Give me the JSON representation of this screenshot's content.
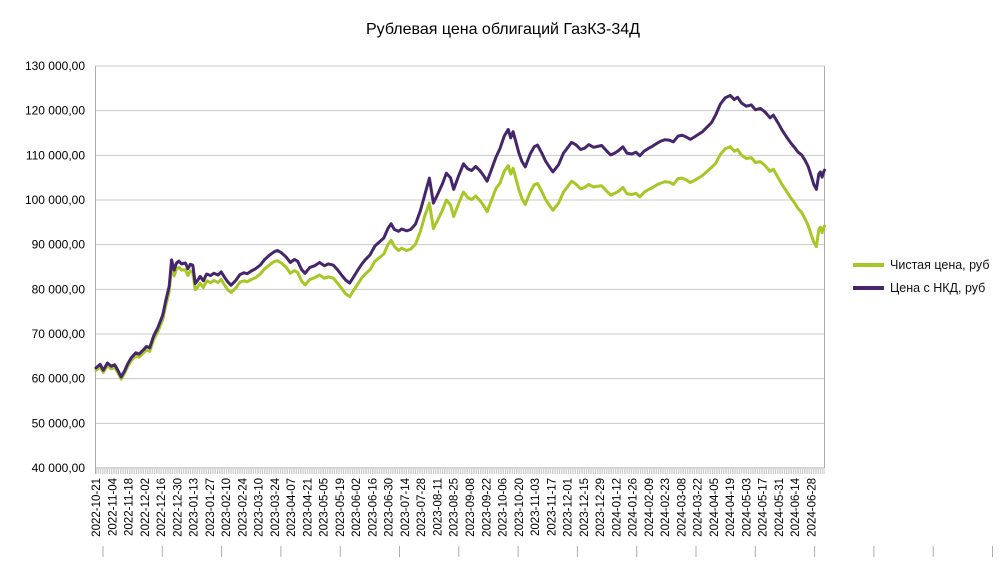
{
  "title": "Рублевая цена облигаций ГазКЗ-34Д",
  "legend": {
    "items": [
      {
        "label": "Чистая цена, руб",
        "series": "clean"
      },
      {
        "label": "Цена с НКД, руб",
        "series": "dirty"
      }
    ]
  },
  "colors": {
    "clean": "#A6C725",
    "dirty": "#45266B",
    "grid": "#C9C9C9",
    "axis": "#ADADAD",
    "minor_tick": "#BDBDBD",
    "text": "#000000",
    "background": "#FFFFFF"
  },
  "chart_data": {
    "type": "line",
    "title": "Рублевая цена облигаций ГазКЗ-34Д",
    "xlabel": "",
    "ylabel": "",
    "ylim": [
      40000,
      130000
    ],
    "y_tick_step": 10000,
    "grid": true,
    "legend_position": "right",
    "y_tick_labels": [
      "130 000,00",
      "120 000,00",
      "110 000,00",
      "100 000,00",
      "90 000,00",
      "80 000,00",
      "70 000,00",
      "60 000,00",
      "50 000,00",
      "40 000,00"
    ],
    "x_tick_labels": [
      "2022-10-21",
      "2022-11-04",
      "2022-11-18",
      "2022-12-02",
      "2022-12-16",
      "2022-12-30",
      "2023-01-13",
      "2023-01-27",
      "2023-02-10",
      "2023-02-24",
      "2023-03-10",
      "2023-03-24",
      "2023-04-07",
      "2023-04-21",
      "2023-05-05",
      "2023-05-19",
      "2023-06-02",
      "2023-06-16",
      "2023-06-30",
      "2023-07-14",
      "2023-07-28",
      "2023-08-11",
      "2023-08-25",
      "2023-09-08",
      "2023-09-22",
      "2023-10-06",
      "2023-10-20",
      "2023-11-03",
      "2023-11-17",
      "2023-12-01",
      "2023-12-15",
      "2023-12-29",
      "2024-01-12",
      "2024-01-26",
      "2024-02-09",
      "2024-02-23",
      "2024-03-08",
      "2024-03-22",
      "2024-04-05",
      "2024-04-19",
      "2024-05-03",
      "2024-05-17",
      "2024-05-31",
      "2024-06-14",
      "2024-06-28"
    ],
    "x_unit": "tick_index (0 = 2022-10-21, 1 tick = 14 days, data extends to ~44.8)",
    "points_format": [
      "tick_index",
      "Цена с НКД, руб",
      "Чистая цена, руб"
    ],
    "series": [
      {
        "name": "Чистая цена, руб",
        "key": "clean",
        "color": "#A6C725",
        "point_index": 2
      },
      {
        "name": "Цена с НКД, руб",
        "key": "dirty",
        "color": "#45266B",
        "point_index": 1
      }
    ],
    "points": [
      [
        0,
        62400,
        61900
      ],
      [
        0.25,
        63200,
        62600
      ],
      [
        0.45,
        61900,
        61400
      ],
      [
        0.7,
        63500,
        62900
      ],
      [
        0.95,
        62800,
        62200
      ],
      [
        1.15,
        63100,
        62500
      ],
      [
        1.35,
        61800,
        61300
      ],
      [
        1.55,
        60400,
        59900
      ],
      [
        1.75,
        61700,
        61200
      ],
      [
        1.95,
        63300,
        62700
      ],
      [
        2.15,
        64600,
        64000
      ],
      [
        2.45,
        65800,
        65100
      ],
      [
        2.65,
        65500,
        64800
      ],
      [
        2.9,
        66400,
        65700
      ],
      [
        3.1,
        67200,
        66400
      ],
      [
        3.3,
        66900,
        66100
      ],
      [
        3.55,
        69600,
        68800
      ],
      [
        3.8,
        71400,
        70500
      ],
      [
        4.1,
        74200,
        73200
      ],
      [
        4.3,
        77600,
        76500
      ],
      [
        4.5,
        80700,
        79500
      ],
      [
        4.65,
        86600,
        85300
      ],
      [
        4.8,
        84300,
        83000
      ],
      [
        4.95,
        85900,
        84600
      ],
      [
        5.1,
        86300,
        84900
      ],
      [
        5.25,
        85700,
        84300
      ],
      [
        5.5,
        85900,
        84400
      ],
      [
        5.65,
        84600,
        83100
      ],
      [
        5.8,
        85600,
        84100
      ],
      [
        5.95,
        85400,
        83900
      ],
      [
        6.1,
        81300,
        79900
      ],
      [
        6.25,
        82000,
        80500
      ],
      [
        6.4,
        82900,
        81400
      ],
      [
        6.6,
        81900,
        80400
      ],
      [
        6.8,
        83400,
        81900
      ],
      [
        7.05,
        83100,
        81500
      ],
      [
        7.25,
        83600,
        82000
      ],
      [
        7.5,
        83200,
        81500
      ],
      [
        7.7,
        83900,
        82200
      ],
      [
        7.9,
        82700,
        81000
      ],
      [
        8.1,
        81700,
        79900
      ],
      [
        8.3,
        80900,
        79300
      ],
      [
        8.6,
        82000,
        80300
      ],
      [
        8.85,
        83300,
        81600
      ],
      [
        9.1,
        83700,
        81900
      ],
      [
        9.3,
        83500,
        81700
      ],
      [
        9.55,
        84100,
        82200
      ],
      [
        9.8,
        84600,
        82600
      ],
      [
        10.1,
        85400,
        83400
      ],
      [
        10.35,
        86600,
        84500
      ],
      [
        10.65,
        87600,
        85400
      ],
      [
        10.95,
        88400,
        86200
      ],
      [
        11.15,
        88700,
        86400
      ],
      [
        11.4,
        88200,
        85900
      ],
      [
        11.7,
        87200,
        84900
      ],
      [
        11.95,
        86000,
        83600
      ],
      [
        12.2,
        86700,
        84200
      ],
      [
        12.4,
        86300,
        83800
      ],
      [
        12.65,
        84400,
        81800
      ],
      [
        12.85,
        83600,
        81000
      ],
      [
        13.15,
        84900,
        82200
      ],
      [
        13.45,
        85300,
        82600
      ],
      [
        13.75,
        86000,
        83200
      ],
      [
        14.05,
        85300,
        82500
      ],
      [
        14.3,
        85700,
        82800
      ],
      [
        14.6,
        85400,
        82500
      ],
      [
        14.85,
        84400,
        81400
      ],
      [
        15.1,
        83200,
        80200
      ],
      [
        15.35,
        82100,
        79000
      ],
      [
        15.6,
        81400,
        78400
      ],
      [
        15.85,
        82800,
        79800
      ],
      [
        16.1,
        84300,
        81200
      ],
      [
        16.35,
        85700,
        82600
      ],
      [
        16.55,
        86600,
        83400
      ],
      [
        16.85,
        87700,
        84400
      ],
      [
        17.15,
        89700,
        86300
      ],
      [
        17.4,
        90500,
        87000
      ],
      [
        17.7,
        91500,
        87900
      ],
      [
        17.95,
        93600,
        90000
      ],
      [
        18.15,
        94700,
        91000
      ],
      [
        18.35,
        93400,
        89600
      ],
      [
        18.6,
        93000,
        88700
      ],
      [
        18.8,
        93500,
        89200
      ],
      [
        19.1,
        93100,
        88700
      ],
      [
        19.35,
        93400,
        89000
      ],
      [
        19.65,
        94600,
        90100
      ],
      [
        19.95,
        97600,
        93000
      ],
      [
        20.25,
        101600,
        96800
      ],
      [
        20.5,
        104900,
        99300
      ],
      [
        20.75,
        99300,
        93600
      ],
      [
        21,
        101200,
        95400
      ],
      [
        21.3,
        103600,
        97700
      ],
      [
        21.55,
        106000,
        100000
      ],
      [
        21.8,
        105000,
        98900
      ],
      [
        22,
        102400,
        96300
      ],
      [
        22.3,
        105400,
        99200
      ],
      [
        22.6,
        108100,
        101800
      ],
      [
        22.85,
        107000,
        100600
      ],
      [
        23.1,
        106600,
        100100
      ],
      [
        23.35,
        107500,
        100900
      ],
      [
        23.6,
        106600,
        99900
      ],
      [
        23.85,
        105400,
        98700
      ],
      [
        24.05,
        104200,
        97400
      ],
      [
        24.3,
        106600,
        99700
      ],
      [
        24.6,
        109600,
        102600
      ],
      [
        24.85,
        111600,
        103800
      ],
      [
        25.1,
        114300,
        106400
      ],
      [
        25.35,
        115800,
        107700
      ],
      [
        25.5,
        113900,
        105800
      ],
      [
        25.65,
        115300,
        107100
      ],
      [
        25.85,
        112600,
        104400
      ],
      [
        26,
        110600,
        102400
      ],
      [
        26.2,
        108600,
        100300
      ],
      [
        26.4,
        107400,
        99000
      ],
      [
        26.7,
        110300,
        101800
      ],
      [
        26.95,
        111900,
        103400
      ],
      [
        27.15,
        112300,
        103700
      ],
      [
        27.4,
        110600,
        102000
      ],
      [
        27.65,
        108700,
        100100
      ],
      [
        27.9,
        107300,
        98700
      ],
      [
        28.1,
        106300,
        97700
      ],
      [
        28.45,
        107900,
        99300
      ],
      [
        28.75,
        110500,
        101800
      ],
      [
        29,
        111700,
        103000
      ],
      [
        29.25,
        112900,
        104200
      ],
      [
        29.5,
        112400,
        103600
      ],
      [
        29.8,
        111300,
        102500
      ],
      [
        30.05,
        111600,
        102800
      ],
      [
        30.3,
        112400,
        103500
      ],
      [
        30.6,
        111800,
        102900
      ],
      [
        30.85,
        112000,
        103100
      ],
      [
        31.1,
        112200,
        103200
      ],
      [
        31.4,
        111000,
        102000
      ],
      [
        31.65,
        110100,
        101100
      ],
      [
        31.9,
        110500,
        101500
      ],
      [
        32.15,
        111100,
        102000
      ],
      [
        32.4,
        111900,
        102800
      ],
      [
        32.65,
        110500,
        101400
      ],
      [
        32.95,
        110300,
        101200
      ],
      [
        33.2,
        110700,
        101500
      ],
      [
        33.45,
        109900,
        100700
      ],
      [
        33.7,
        110900,
        101700
      ],
      [
        33.95,
        111500,
        102300
      ],
      [
        34.2,
        112000,
        102700
      ],
      [
        34.5,
        112700,
        103400
      ],
      [
        34.75,
        113200,
        103800
      ],
      [
        35,
        113500,
        104100
      ],
      [
        35.25,
        113400,
        104000
      ],
      [
        35.5,
        113000,
        103500
      ],
      [
        35.8,
        114300,
        104800
      ],
      [
        36.05,
        114500,
        104900
      ],
      [
        36.3,
        114100,
        104500
      ],
      [
        36.55,
        113600,
        103900
      ],
      [
        36.8,
        114100,
        104400
      ],
      [
        37.05,
        114700,
        104900
      ],
      [
        37.3,
        115300,
        105500
      ],
      [
        37.55,
        116200,
        106300
      ],
      [
        37.85,
        117300,
        107300
      ],
      [
        38.1,
        119000,
        108200
      ],
      [
        38.4,
        121500,
        110200
      ],
      [
        38.7,
        122900,
        111500
      ],
      [
        39,
        123400,
        111900
      ],
      [
        39.25,
        122500,
        110900
      ],
      [
        39.45,
        123000,
        111300
      ],
      [
        39.7,
        121700,
        110000
      ],
      [
        40,
        121000,
        109300
      ],
      [
        40.3,
        121300,
        109500
      ],
      [
        40.55,
        120200,
        108400
      ],
      [
        40.85,
        120500,
        108600
      ],
      [
        41.15,
        119700,
        107700
      ],
      [
        41.45,
        118400,
        106400
      ],
      [
        41.65,
        119000,
        106900
      ],
      [
        41.95,
        117200,
        105000
      ],
      [
        42.2,
        115600,
        103400
      ],
      [
        42.45,
        114200,
        102000
      ],
      [
        42.7,
        112900,
        100600
      ],
      [
        42.95,
        111800,
        99400
      ],
      [
        43.15,
        110800,
        98200
      ],
      [
        43.4,
        110100,
        97200
      ],
      [
        43.6,
        108900,
        95800
      ],
      [
        43.8,
        107500,
        94300
      ],
      [
        44,
        105200,
        92000
      ],
      [
        44.15,
        103400,
        90500
      ],
      [
        44.3,
        102400,
        89600
      ],
      [
        44.45,
        105800,
        93400
      ],
      [
        44.55,
        106300,
        93900
      ],
      [
        44.65,
        105100,
        92700
      ],
      [
        44.75,
        106300,
        93800
      ],
      [
        44.8,
        106700,
        94200
      ]
    ]
  }
}
